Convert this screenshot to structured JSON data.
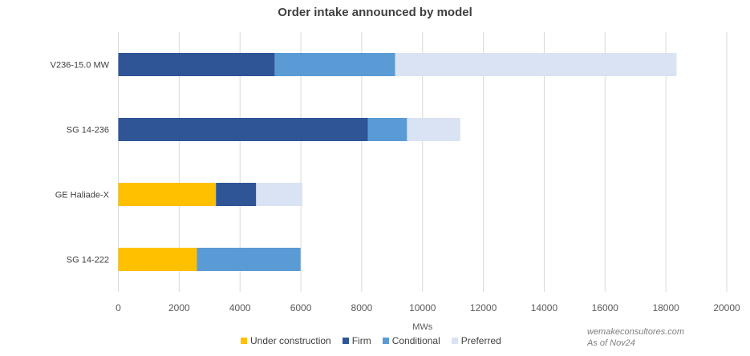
{
  "chart_data": {
    "type": "bar",
    "orientation": "horizontal",
    "stacked": true,
    "title": "Order intake announced by model",
    "xlabel": "MWs",
    "ylabel": "",
    "xlim": [
      0,
      20000
    ],
    "xticks": [
      0,
      2000,
      4000,
      6000,
      8000,
      10000,
      12000,
      14000,
      16000,
      18000,
      20000
    ],
    "grid": true,
    "legend_position": "bottom",
    "categories": [
      "V236-15.0 MW",
      "SG 14-236",
      "GE Haliade-X",
      "SG 14-222"
    ],
    "series": [
      {
        "name": "Under construction",
        "color": "#FFC000",
        "values": [
          0,
          0,
          3210,
          2580
        ]
      },
      {
        "name": "Firm",
        "color": "#2F5597",
        "values": [
          5140,
          8200,
          1320,
          0
        ]
      },
      {
        "name": "Conditional",
        "color": "#5B9BD5",
        "values": [
          3960,
          1290,
          0,
          3410
        ]
      },
      {
        "name": "Preferred",
        "color": "#DAE3F3",
        "values": [
          9250,
          1750,
          1520,
          0
        ]
      }
    ]
  },
  "credits": {
    "site": "wemakeconsultores.com",
    "date": "As of Nov24"
  }
}
